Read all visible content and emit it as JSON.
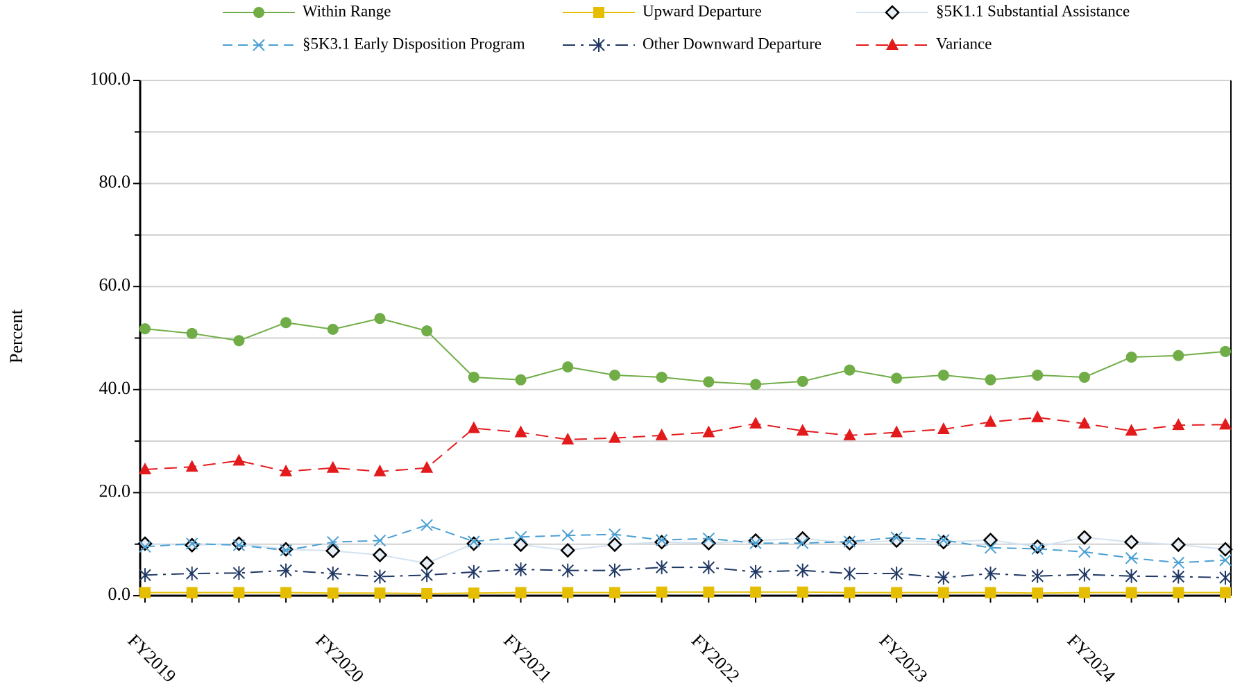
{
  "chart_data": {
    "type": "line",
    "y_label": "Percent",
    "categories": [
      "FY2019",
      null,
      null,
      null,
      "FY2020",
      null,
      null,
      null,
      "FY2021",
      null,
      null,
      null,
      "FY2022",
      null,
      null,
      null,
      "FY2023",
      null,
      null,
      null,
      "FY2024",
      null,
      null,
      null
    ],
    "ylim": [
      0,
      100
    ],
    "yticks": [
      {
        "value": 0,
        "label": "0.0"
      },
      {
        "value": 20,
        "label": "20.0"
      },
      {
        "value": 40,
        "label": "40.0"
      },
      {
        "value": 60,
        "label": "60.0"
      },
      {
        "value": 80,
        "label": "80.0"
      },
      {
        "value": 100,
        "label": "100.0"
      }
    ],
    "yticks_minor": [
      10,
      30,
      50,
      70,
      90
    ],
    "grid": true,
    "series": [
      {
        "name": "Within Range",
        "color": "#70ad47",
        "marker": "circle",
        "dash": "none",
        "values": [
          51.8,
          50.9,
          49.5,
          53.0,
          51.7,
          53.8,
          51.4,
          42.4,
          41.9,
          44.4,
          42.8,
          42.4,
          41.5,
          41.0,
          41.6,
          43.8,
          42.2,
          42.8,
          41.9,
          42.8,
          42.4,
          46.3,
          46.6,
          47.4
        ]
      },
      {
        "name": "Upward Departure",
        "color": "#e5be01",
        "marker": "square",
        "dash": "none",
        "values": [
          0.6,
          0.6,
          0.6,
          0.6,
          0.5,
          0.5,
          0.4,
          0.5,
          0.6,
          0.6,
          0.6,
          0.7,
          0.7,
          0.7,
          0.7,
          0.6,
          0.6,
          0.6,
          0.6,
          0.5,
          0.6,
          0.6,
          0.6,
          0.6
        ]
      },
      {
        "name": "§5K1.1 Substantial Assistance",
        "color": "#d3e2f0",
        "marker": "diamond",
        "dash": "none",
        "values": [
          10.1,
          9.8,
          10.1,
          9.0,
          8.7,
          7.9,
          6.3,
          10.1,
          9.9,
          8.8,
          9.9,
          10.4,
          10.2,
          10.7,
          11.1,
          10.2,
          10.7,
          10.4,
          10.8,
          9.5,
          11.3,
          10.4,
          9.9,
          9.0
        ]
      },
      {
        "name": "§5K3.1 Early Disposition Program",
        "color": "#4a9fd4",
        "marker": "x",
        "dash": "14 8",
        "values": [
          9.5,
          10.1,
          9.8,
          8.8,
          10.4,
          10.7,
          13.7,
          10.5,
          11.4,
          11.7,
          11.9,
          10.8,
          11.1,
          10.2,
          10.2,
          10.5,
          11.3,
          10.8,
          9.3,
          9.1,
          8.5,
          7.3,
          6.4,
          6.9
        ]
      },
      {
        "name": "Other Downward Departure",
        "color": "#1f3864",
        "marker": "asterisk",
        "dash": "18 8 4 8",
        "values": [
          4.0,
          4.3,
          4.4,
          4.9,
          4.3,
          3.7,
          4.0,
          4.6,
          5.1,
          4.9,
          4.9,
          5.5,
          5.5,
          4.6,
          4.9,
          4.3,
          4.3,
          3.5,
          4.3,
          3.8,
          4.1,
          3.8,
          3.7,
          3.5
        ]
      },
      {
        "name": "Variance",
        "color": "#e31a1c",
        "marker": "triangle",
        "dash": "18 10",
        "values": [
          24.5,
          25.0,
          26.2,
          24.1,
          24.8,
          24.1,
          24.8,
          32.5,
          31.7,
          30.3,
          30.6,
          31.1,
          31.7,
          33.4,
          32.0,
          31.1,
          31.7,
          32.3,
          33.7,
          34.6,
          33.4,
          32.0,
          33.1,
          33.2
        ]
      }
    ]
  }
}
